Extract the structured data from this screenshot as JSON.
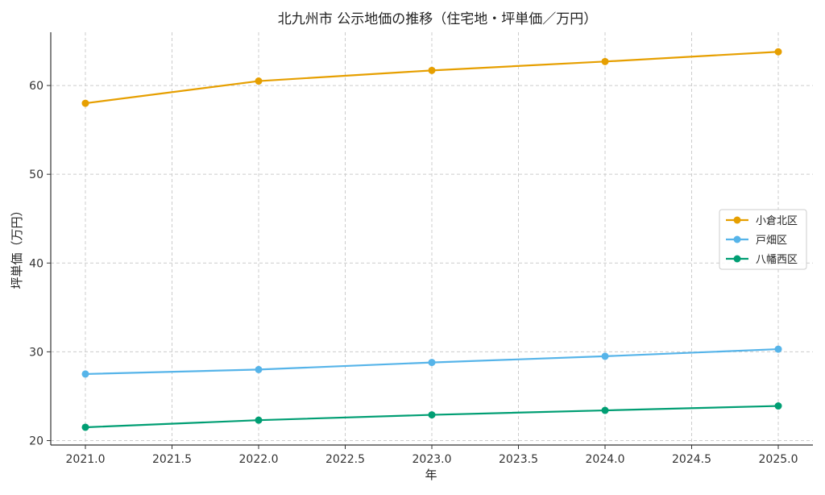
{
  "chart_data": {
    "type": "line",
    "title": "北九州市 公示地価の推移（住宅地・坪単価／万円）",
    "xlabel": "年",
    "ylabel": "坪単価（万円）",
    "xlim": [
      2020.8,
      2025.2
    ],
    "ylim": [
      19.5,
      66.0
    ],
    "x_ticks": [
      "2021.0",
      "2021.5",
      "2022.0",
      "2022.5",
      "2023.0",
      "2023.5",
      "2024.0",
      "2024.5",
      "2025.0"
    ],
    "y_ticks": [
      "20",
      "30",
      "40",
      "50",
      "60"
    ],
    "grid": true,
    "legend_position": "center-right",
    "x": [
      2021,
      2022,
      2023,
      2024,
      2025
    ],
    "series": [
      {
        "name": "小倉北区",
        "color": "#E69F00",
        "values": [
          58.0,
          60.5,
          61.7,
          62.7,
          63.8
        ]
      },
      {
        "name": "戸畑区",
        "color": "#56B4E9",
        "values": [
          27.5,
          28.0,
          28.8,
          29.5,
          30.3
        ]
      },
      {
        "name": "八幡西区",
        "color": "#009E73",
        "values": [
          21.5,
          22.3,
          22.9,
          23.4,
          23.9
        ]
      }
    ]
  }
}
